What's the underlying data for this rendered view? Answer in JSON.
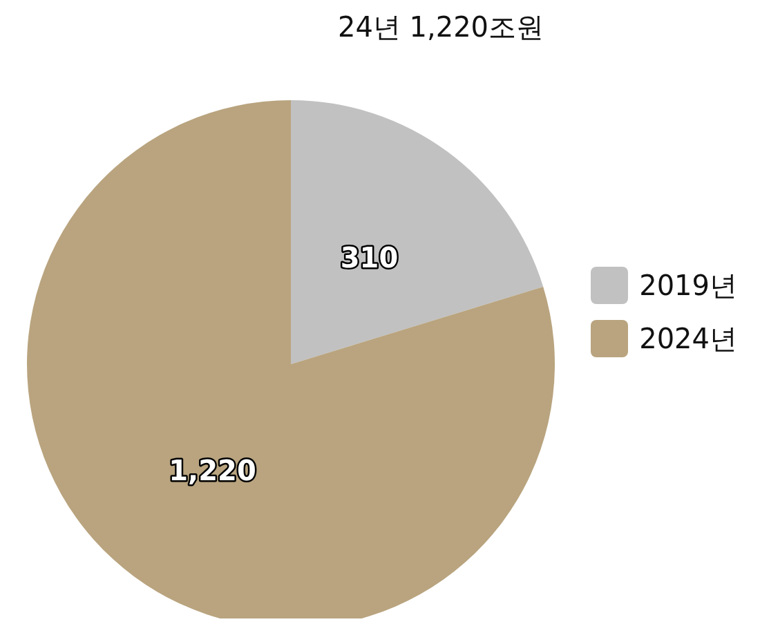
{
  "chart_data": {
    "type": "pie",
    "title": "24년 1,220조원",
    "categories": [
      "2019년",
      "2024년"
    ],
    "values": [
      310,
      1220
    ],
    "colors": [
      "#c1c1c1",
      "#b9a47f"
    ],
    "value_labels": [
      "310",
      "1,220"
    ],
    "legend": "right"
  }
}
